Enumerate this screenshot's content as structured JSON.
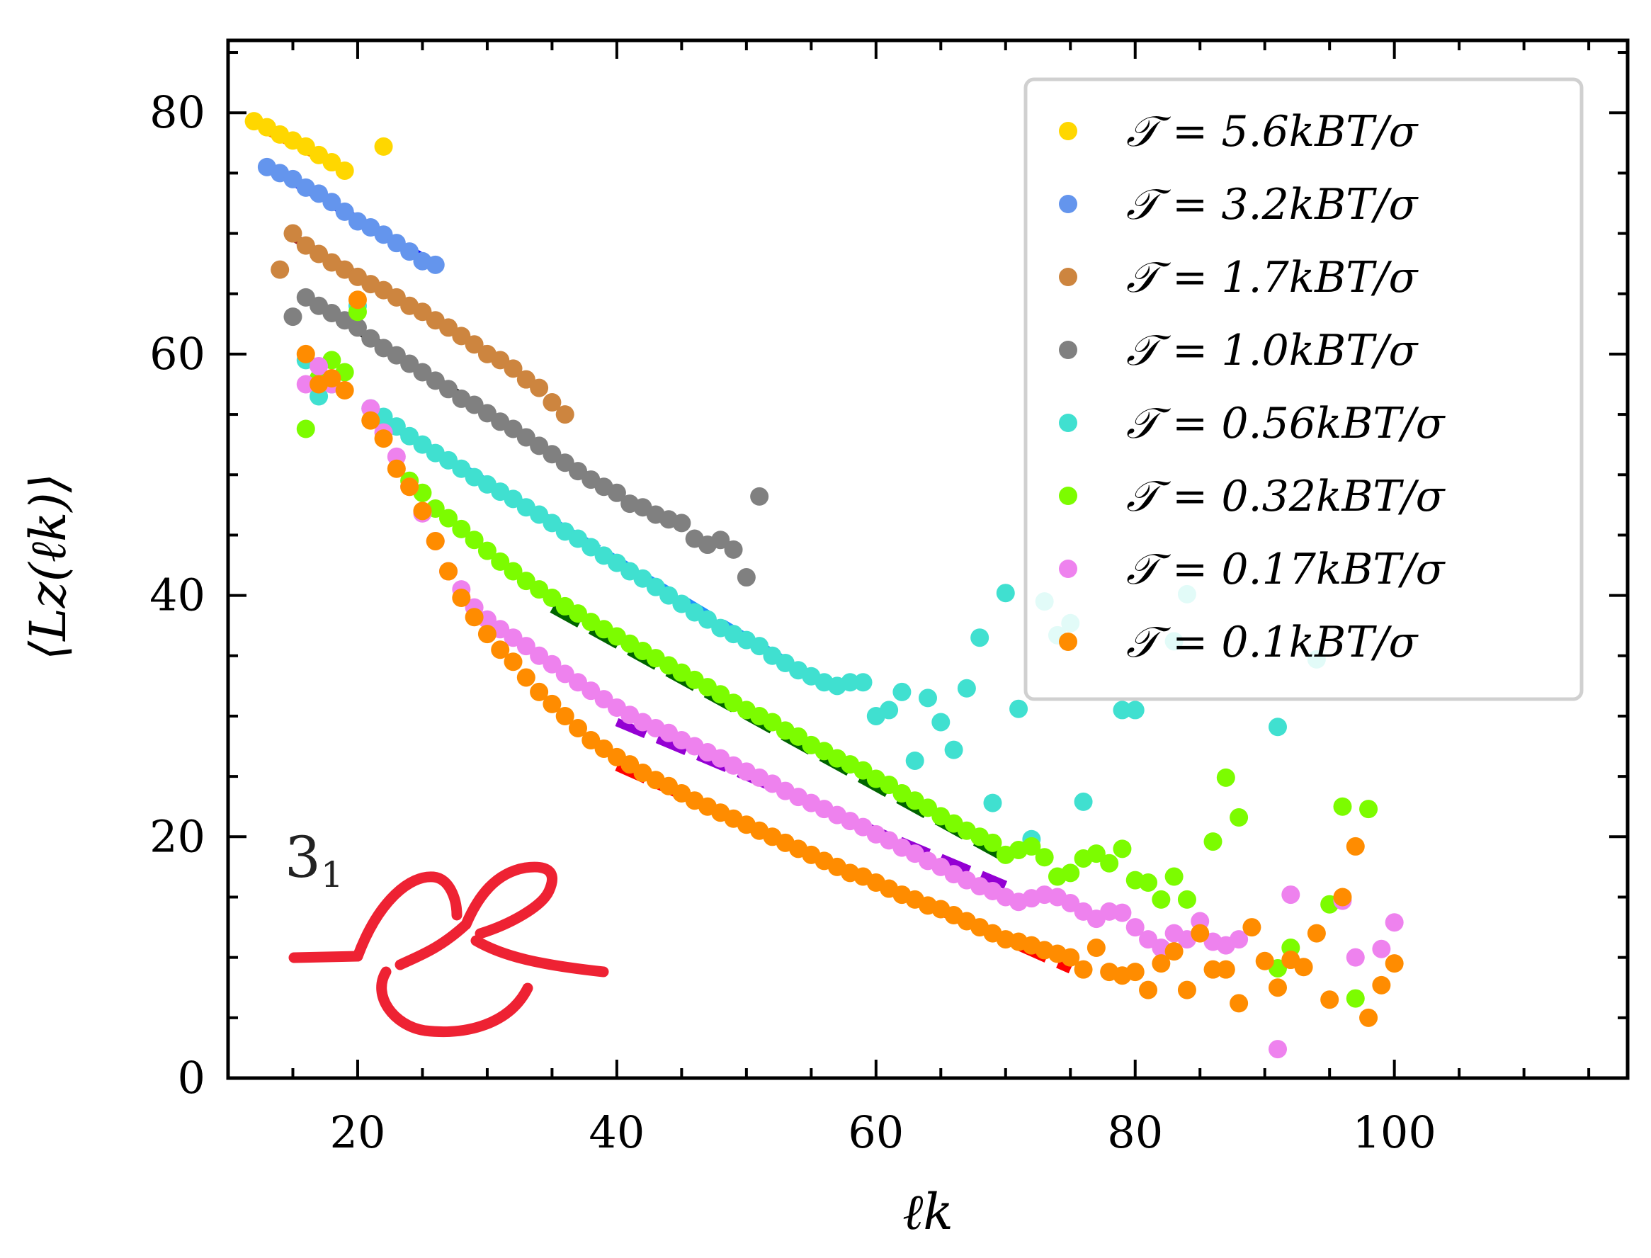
{
  "chart_data": {
    "type": "scatter",
    "title": "",
    "xlabel": "ℓk",
    "ylabel": "⟨Lz(ℓk)⟩",
    "xlim": [
      10,
      118
    ],
    "ylim": [
      0,
      86
    ],
    "x_ticks": [
      20,
      40,
      60,
      80,
      100
    ],
    "x_tick_labels": [
      "20",
      "40",
      "60",
      "80",
      "100"
    ],
    "y_ticks": [
      0,
      20,
      40,
      60,
      80
    ],
    "y_tick_labels": [
      "0",
      "20",
      "40",
      "60",
      "80"
    ],
    "grid": false,
    "legend_position": "top-right",
    "knot_label": "3",
    "knot_label_sub": "1",
    "series": [
      {
        "name": "𝒯 = 5.6kBT/σ",
        "color": "#FFD700",
        "fit_color": "#FF8C00",
        "x": [
          12,
          13,
          14,
          15,
          16,
          17,
          18,
          19,
          22
        ],
        "y": [
          79.3,
          78.8,
          78.2,
          77.7,
          77.2,
          76.5,
          75.9,
          75.2,
          77.2
        ],
        "fit": [
          [
            13,
            78.5
          ],
          [
            19,
            75.3
          ]
        ]
      },
      {
        "name": "𝒯 = 3.2kBT/σ",
        "color": "#6495ED",
        "fit_color": "#0000FF",
        "x": [
          13,
          14,
          15,
          16,
          17,
          18,
          19,
          20,
          21,
          22,
          23,
          24,
          25,
          26
        ],
        "y": [
          75.5,
          75.0,
          74.5,
          73.8,
          73.3,
          72.6,
          71.8,
          71.0,
          70.5,
          69.9,
          69.2,
          68.5,
          67.7,
          67.4
        ],
        "fit": [
          [
            15,
            74.3
          ],
          [
            26,
            67.4
          ]
        ]
      },
      {
        "name": "𝒯 = 1.7kBT/σ",
        "color": "#CD853F",
        "fit_color": "#A52A2A",
        "x": [
          14,
          15,
          16,
          17,
          18,
          19,
          20,
          21,
          22,
          23,
          24,
          25,
          26,
          27,
          28,
          29,
          30,
          31,
          32,
          33,
          34,
          35,
          36
        ],
        "y": [
          67.0,
          70.0,
          69.0,
          68.3,
          67.6,
          67.0,
          66.4,
          65.8,
          65.3,
          64.7,
          64.0,
          63.5,
          62.8,
          62.2,
          61.5,
          60.8,
          60.0,
          59.5,
          58.8,
          57.9,
          57.2,
          56.0,
          55.0
        ],
        "fit": [
          [
            15,
            69.7
          ],
          [
            30,
            60.2
          ]
        ]
      },
      {
        "name": "𝒯 = 1.0kBT/σ",
        "color": "#808080",
        "fit_color": "#000000",
        "x": [
          15,
          16,
          17,
          18,
          19,
          20,
          21,
          22,
          23,
          24,
          25,
          26,
          27,
          28,
          29,
          30,
          31,
          32,
          33,
          34,
          35,
          36,
          37,
          38,
          39,
          40,
          41,
          42,
          43,
          44,
          45,
          46,
          47,
          48,
          49,
          50,
          51
        ],
        "y": [
          63.1,
          64.7,
          64.0,
          63.4,
          62.8,
          62.2,
          61.3,
          60.5,
          59.9,
          59.2,
          58.5,
          57.8,
          57.1,
          56.3,
          55.8,
          55.1,
          54.4,
          53.8,
          53.1,
          52.4,
          51.7,
          51.0,
          50.3,
          49.6,
          49.0,
          48.5,
          47.6,
          47.3,
          46.7,
          46.3,
          46.0,
          44.7,
          44.2,
          44.6,
          43.8,
          41.5,
          48.2
        ],
        "fit": [
          [
            20,
            62.0
          ],
          [
            40,
            48.3
          ]
        ]
      },
      {
        "name": "𝒯 = 0.56kBT/σ",
        "color": "#40E0D0",
        "fit_color": "#1E90FF",
        "x": [
          16,
          17,
          18,
          20,
          21,
          22,
          23,
          24,
          25,
          26,
          27,
          28,
          29,
          30,
          31,
          32,
          33,
          34,
          35,
          36,
          37,
          38,
          39,
          40,
          41,
          42,
          43,
          44,
          45,
          46,
          47,
          48,
          49,
          50,
          51,
          52,
          53,
          54,
          55,
          56,
          57,
          58,
          59,
          60,
          61,
          62,
          63,
          64,
          65,
          66,
          67,
          68,
          69,
          70,
          71,
          72,
          73,
          74,
          75,
          76,
          79,
          80,
          83,
          84,
          91,
          94
        ],
        "y": [
          59.5,
          56.5,
          57.5,
          64.0,
          55.5,
          54.8,
          54.0,
          53.2,
          52.5,
          51.8,
          51.2,
          50.5,
          49.8,
          49.2,
          48.6,
          48.0,
          47.3,
          46.7,
          46.0,
          45.3,
          44.7,
          44.0,
          43.3,
          42.7,
          42.0,
          41.4,
          40.7,
          40.0,
          39.3,
          38.6,
          38.0,
          37.3,
          36.8,
          36.3,
          35.8,
          35.0,
          34.4,
          33.8,
          33.3,
          32.8,
          32.5,
          32.8,
          32.8,
          30.0,
          30.5,
          32.0,
          26.3,
          31.5,
          29.5,
          27.2,
          32.3,
          36.5,
          22.8,
          40.2,
          30.6,
          19.8,
          39.5,
          36.7,
          37.7,
          22.9,
          30.5,
          30.5,
          36.2,
          40.1,
          29.1,
          34.7
        ],
        "fit": [
          [
            22,
            54.5
          ],
          [
            55,
            33.3
          ]
        ]
      },
      {
        "name": "𝒯 = 0.32kBT/σ",
        "color": "#7CFC00",
        "fit_color": "#006400",
        "x": [
          16,
          17,
          18,
          19,
          20,
          24,
          25,
          26,
          27,
          28,
          29,
          30,
          31,
          32,
          33,
          34,
          35,
          36,
          37,
          38,
          39,
          40,
          41,
          42,
          43,
          44,
          45,
          46,
          47,
          48,
          49,
          50,
          51,
          52,
          53,
          54,
          55,
          56,
          57,
          58,
          59,
          60,
          61,
          62,
          63,
          64,
          65,
          66,
          67,
          68,
          69,
          70,
          71,
          72,
          73,
          74,
          75,
          76,
          77,
          78,
          79,
          80,
          81,
          82,
          83,
          84,
          86,
          87,
          88,
          91,
          92,
          95,
          96,
          97,
          98
        ],
        "y": [
          53.8,
          58.0,
          59.5,
          58.5,
          63.5,
          49.5,
          48.5,
          47.2,
          46.4,
          45.5,
          44.6,
          43.7,
          42.8,
          42.0,
          41.2,
          40.5,
          39.8,
          39.1,
          38.5,
          37.8,
          37.2,
          36.6,
          36.0,
          35.4,
          34.8,
          34.2,
          33.6,
          33.0,
          32.4,
          31.8,
          31.1,
          30.5,
          30.0,
          29.5,
          28.8,
          28.3,
          27.6,
          27.1,
          26.5,
          26.0,
          25.5,
          24.8,
          24.3,
          23.6,
          23.0,
          22.4,
          21.7,
          21.1,
          20.5,
          20.0,
          19.5,
          18.5,
          18.9,
          19.2,
          18.3,
          16.7,
          17.0,
          18.2,
          18.6,
          17.8,
          19.0,
          16.4,
          16.2,
          14.8,
          16.7,
          14.8,
          19.6,
          24.9,
          21.6,
          9.1,
          10.8,
          14.4,
          22.5,
          6.6,
          22.3
        ],
        "fit": [
          [
            35,
            38.9
          ],
          [
            70,
            18.2
          ]
        ]
      },
      {
        "name": "𝒯 = 0.17kBT/σ",
        "color": "#EE82EE",
        "fit_color": "#9400D3",
        "x": [
          16,
          17,
          18,
          21,
          22,
          23,
          24,
          25,
          26,
          27,
          28,
          29,
          30,
          31,
          32,
          33,
          34,
          35,
          36,
          37,
          38,
          39,
          40,
          41,
          42,
          43,
          44,
          45,
          46,
          47,
          48,
          49,
          50,
          51,
          52,
          53,
          54,
          55,
          56,
          57,
          58,
          59,
          60,
          61,
          62,
          63,
          64,
          65,
          66,
          67,
          68,
          69,
          70,
          71,
          72,
          73,
          74,
          75,
          76,
          77,
          78,
          79,
          80,
          81,
          82,
          83,
          84,
          85,
          86,
          87,
          88,
          91,
          92,
          96,
          97,
          99,
          100
        ],
        "y": [
          57.5,
          59.0,
          57.5,
          55.5,
          53.5,
          51.5,
          49.0,
          46.8,
          44.5,
          42.0,
          40.5,
          39.0,
          38.0,
          37.2,
          36.5,
          35.8,
          35.0,
          34.3,
          33.5,
          32.8,
          32.1,
          31.4,
          30.7,
          30.1,
          29.5,
          29.0,
          28.6,
          28.0,
          27.5,
          27.0,
          26.5,
          25.9,
          25.4,
          24.9,
          24.4,
          23.8,
          23.3,
          22.8,
          22.3,
          21.8,
          21.3,
          20.8,
          20.2,
          19.7,
          19.1,
          18.6,
          18.0,
          17.5,
          16.9,
          16.4,
          15.9,
          15.5,
          15.0,
          14.6,
          14.9,
          15.2,
          15.0,
          14.5,
          13.8,
          13.2,
          13.8,
          13.7,
          12.5,
          11.5,
          10.8,
          12.0,
          11.5,
          13.0,
          11.3,
          11.0,
          11.5,
          2.4,
          15.2,
          14.7,
          10.0,
          10.7,
          12.9
        ],
        "fit": [
          [
            40,
            29.5
          ],
          [
            70,
            16.0
          ]
        ]
      },
      {
        "name": "𝒯 = 0.1kBT/σ",
        "color": "#FF8C00",
        "fit_color": "#FF0000",
        "x": [
          16,
          17,
          18,
          19,
          20,
          21,
          22,
          23,
          24,
          25,
          26,
          27,
          28,
          29,
          30,
          31,
          32,
          33,
          34,
          35,
          36,
          37,
          38,
          39,
          40,
          41,
          42,
          43,
          44,
          45,
          46,
          47,
          48,
          49,
          50,
          51,
          52,
          53,
          54,
          55,
          56,
          57,
          58,
          59,
          60,
          61,
          62,
          63,
          64,
          65,
          66,
          67,
          68,
          69,
          70,
          71,
          72,
          73,
          74,
          75,
          76,
          77,
          78,
          79,
          80,
          81,
          82,
          83,
          84,
          85,
          86,
          87,
          88,
          89,
          90,
          91,
          92,
          93,
          94,
          95,
          96,
          97,
          98,
          99,
          100
        ],
        "y": [
          60.0,
          57.5,
          58.0,
          57.0,
          64.5,
          54.5,
          53.0,
          50.5,
          49.0,
          47.0,
          44.5,
          42.0,
          39.8,
          38.2,
          36.8,
          35.5,
          34.5,
          33.2,
          32.0,
          31.0,
          30.0,
          29.0,
          28.0,
          27.3,
          26.6,
          26.0,
          25.3,
          24.7,
          24.2,
          23.6,
          23.0,
          22.5,
          22.0,
          21.5,
          21.0,
          20.5,
          20.0,
          19.5,
          19.0,
          18.5,
          18.0,
          17.5,
          17.0,
          16.7,
          16.2,
          15.7,
          15.2,
          14.8,
          14.3,
          14.0,
          13.5,
          13.0,
          12.5,
          12.0,
          11.5,
          11.3,
          11.0,
          10.6,
          10.3,
          10.0,
          9.0,
          10.8,
          8.8,
          8.5,
          8.8,
          7.3,
          9.5,
          10.5,
          7.3,
          12.0,
          9.0,
          9.0,
          6.2,
          12.5,
          9.7,
          7.5,
          9.8,
          9.2,
          12.0,
          6.5,
          15.0,
          19.2,
          5.0,
          7.7,
          9.5
        ],
        "fit": [
          [
            40,
            25.8
          ],
          [
            75,
            9.0
          ]
        ]
      }
    ]
  }
}
